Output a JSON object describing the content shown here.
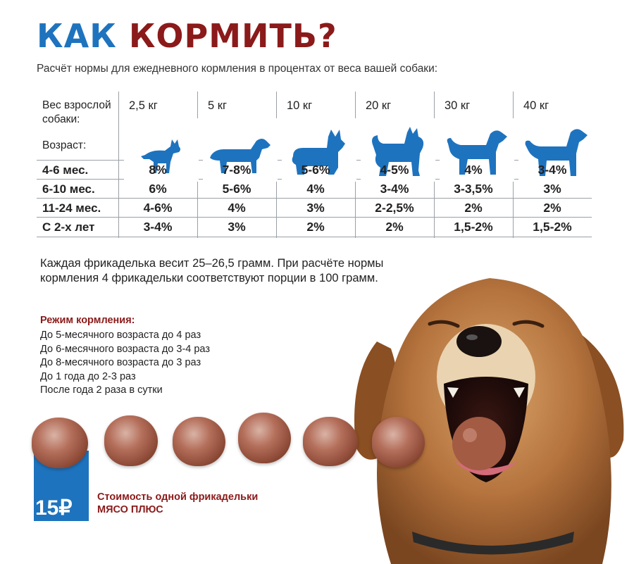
{
  "header": {
    "title_word1": "КАК",
    "title_word2": "КОРМИТЬ?",
    "subtitle": "Расчёт нормы для ежедневного кормления в процентах от веса вашей собаки:"
  },
  "table": {
    "weight_header_line1": "Вес взрослой",
    "weight_header_line2": "собаки:",
    "age_header": "Возраст:",
    "columns": [
      {
        "weight": "2,5 кг",
        "icon": "tiny-dog-icon"
      },
      {
        "weight": "5 кг",
        "icon": "dachshund-icon"
      },
      {
        "weight": "10 кг",
        "icon": "corgi-icon"
      },
      {
        "weight": "20 кг",
        "icon": "fluffy-dog-icon"
      },
      {
        "weight": "30 кг",
        "icon": "medium-dog-icon"
      },
      {
        "weight": "40 кг",
        "icon": "large-dog-icon"
      }
    ],
    "rows": [
      {
        "age": "4-6 мес.",
        "values": [
          "8%",
          "7-8%",
          "5-6%",
          "4-5%",
          "4%",
          "3-4%"
        ]
      },
      {
        "age": "6-10 мес.",
        "values": [
          "6%",
          "5-6%",
          "4%",
          "3-4%",
          "3-3,5%",
          "3%"
        ]
      },
      {
        "age": "11-24 мес.",
        "values": [
          "4-6%",
          "4%",
          "3%",
          "2-2,5%",
          "2%",
          "2%"
        ]
      },
      {
        "age": "С 2-х лет",
        "values": [
          "3-4%",
          "3%",
          "2%",
          "2%",
          "1,5-2%",
          "1,5-2%"
        ]
      }
    ]
  },
  "info": {
    "text": "Каждая фрикаделька весит 25–26,5 грамм. При расчёте нормы кормления 4 фрикадельки соответствуют порции в 100 грамм."
  },
  "regime": {
    "title": "Режим кормления:",
    "items": [
      "До 5-месячного возраста до 4 раз",
      "До 6-месячного возраста до 3-4 раз",
      "До 8-месячного возраста до 3 раз",
      "До 1 года до 2-3 раз",
      "После года 2 раза в сутки"
    ]
  },
  "price": {
    "value": "15₽",
    "label": "Стоимость одной фрикадельки",
    "product": "МЯСО ПЛЮС"
  },
  "colors": {
    "accent_blue": "#1e73be",
    "accent_red": "#8b1a1a"
  }
}
